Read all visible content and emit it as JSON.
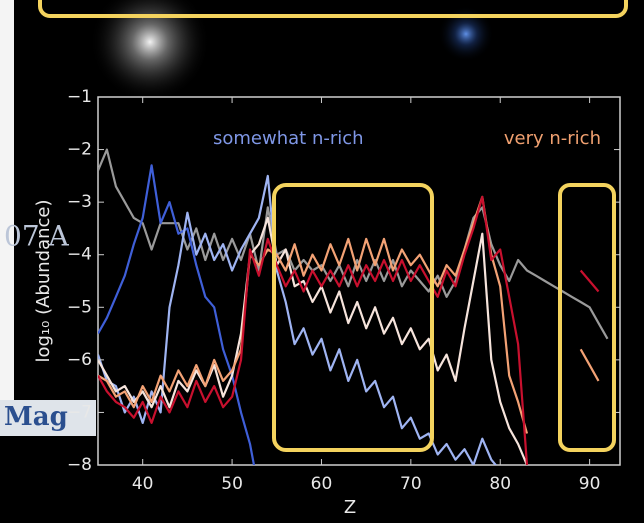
{
  "chart_data": {
    "type": "line",
    "xlabel": "Z",
    "ylabel": "log₁₀ (Abundance)",
    "annotations": [
      "somewhat n-rich",
      "very n-rich"
    ],
    "background_text": [
      "07 A",
      "Mag"
    ],
    "xlim": [
      35,
      93.4
    ],
    "ylim": [
      -8,
      -1
    ],
    "xticks": [
      40,
      50,
      60,
      70,
      80,
      90
    ],
    "yticks": [
      {
        "value": -8,
        "label": "−8"
      },
      {
        "value": -7,
        "label": "−7"
      },
      {
        "value": -6,
        "label": "−6"
      },
      {
        "value": -5,
        "label": "−5"
      },
      {
        "value": -4,
        "label": "−4"
      },
      {
        "value": -3,
        "label": "−3"
      },
      {
        "value": -2,
        "label": "−2"
      },
      {
        "value": -1,
        "label": "−1"
      }
    ],
    "x": [
      35,
      36,
      37,
      38,
      39,
      40,
      41,
      42,
      43,
      44,
      45,
      46,
      47,
      48,
      49,
      50,
      51,
      52,
      53,
      54,
      55,
      56,
      57,
      58,
      59,
      60,
      61,
      62,
      63,
      64,
      65,
      66,
      67,
      68,
      69,
      70,
      71,
      72,
      73,
      74,
      75,
      76,
      77,
      78,
      79,
      80,
      81,
      82,
      83,
      84,
      85,
      86,
      87,
      88,
      89,
      90,
      91,
      92
    ],
    "series": [
      {
        "color": "#9a9a9a",
        "values": [
          -2.4,
          -2.0,
          -2.7,
          -3.0,
          -3.3,
          -3.4,
          -3.9,
          -3.4,
          -3.4,
          -3.4,
          -3.9,
          -3.5,
          -4.1,
          -3.6,
          -4.1,
          -3.7,
          -4.1,
          -3.6,
          -4.3,
          -3.1,
          -4.0,
          -3.9,
          -4.3,
          -4.1,
          -4.3,
          -4.2,
          -4.5,
          -4.2,
          -4.6,
          -4.1,
          -4.5,
          -4.1,
          -4.5,
          -4.1,
          -4.6,
          -4.3,
          -4.5,
          -4.7,
          -4.4,
          -4.8,
          -4.5,
          -3.9,
          -3.3,
          -3.1,
          -3.8,
          -4.2,
          -4.5,
          -4.1,
          -4.3,
          -4.4,
          -4.5,
          -4.6,
          -4.7,
          -4.8,
          -4.9,
          -5.0,
          -5.3,
          -5.6
        ]
      },
      {
        "color": "#3f5fd8",
        "values": [
          -5.5,
          -5.2,
          -4.8,
          -4.4,
          -3.8,
          -3.3,
          -2.3,
          -3.4,
          -3.0,
          -3.6,
          -3.5,
          -4.2,
          -4.8,
          -5.0,
          -5.8,
          -6.3,
          -7.0,
          -7.6,
          -8.5,
          null,
          null,
          null,
          null,
          null,
          null,
          null,
          null,
          null,
          null,
          null,
          null,
          null,
          null,
          null,
          null,
          null,
          null,
          null,
          null,
          null,
          null,
          null,
          null,
          null,
          null,
          null,
          null,
          null,
          null,
          null,
          null,
          null,
          null,
          null,
          null,
          null,
          null,
          null
        ]
      },
      {
        "color": "#9fb4f2",
        "values": [
          -5.9,
          -6.4,
          -6.5,
          -7.0,
          -6.7,
          -7.2,
          -6.6,
          -7.0,
          -5.0,
          -4.2,
          -3.2,
          -4.0,
          -3.6,
          -4.1,
          -3.8,
          -4.3,
          -3.9,
          -3.6,
          -3.3,
          -2.5,
          -4.3,
          -4.9,
          -5.7,
          -5.4,
          -5.9,
          -5.6,
          -6.2,
          -5.8,
          -6.4,
          -6.0,
          -6.6,
          -6.4,
          -6.9,
          -6.7,
          -7.3,
          -7.1,
          -7.5,
          -7.4,
          -7.8,
          -7.6,
          -7.9,
          -7.7,
          -8.0,
          -7.5,
          -7.9,
          -8.1,
          null,
          null,
          null,
          null,
          null,
          null,
          null,
          null,
          null,
          null,
          null,
          null
        ]
      },
      {
        "color": "#f6e4dc",
        "values": [
          -6.0,
          -6.3,
          -6.6,
          -6.5,
          -6.8,
          -6.6,
          -6.9,
          -6.5,
          -6.9,
          -6.4,
          -6.6,
          -6.2,
          -6.5,
          -6.1,
          -6.7,
          -6.3,
          -5.5,
          -4.0,
          -3.8,
          -3.3,
          -4.2,
          -3.9,
          -4.6,
          -4.5,
          -4.9,
          -4.6,
          -5.1,
          -4.7,
          -5.3,
          -4.9,
          -5.4,
          -5.0,
          -5.5,
          -5.2,
          -5.7,
          -5.4,
          -5.8,
          -5.6,
          -6.2,
          -5.9,
          -6.4,
          -5.4,
          -4.5,
          -3.6,
          -6.0,
          -6.8,
          -7.3,
          -7.6,
          -8.0,
          null,
          null,
          null,
          null,
          null,
          null,
          null,
          null,
          null
        ]
      },
      {
        "color": "#f3a275",
        "values": [
          -6.3,
          -6.4,
          -6.7,
          -6.6,
          -6.9,
          -6.5,
          -6.8,
          -6.3,
          -6.6,
          -6.2,
          -6.5,
          -6.1,
          -6.5,
          -6.0,
          -6.4,
          -6.2,
          -5.8,
          -4.0,
          -4.2,
          -3.9,
          -4.0,
          -4.3,
          -3.8,
          -4.4,
          -4.0,
          -4.3,
          -3.8,
          -4.2,
          -3.7,
          -4.3,
          -3.7,
          -4.2,
          -3.7,
          -4.3,
          -3.9,
          -4.2,
          -4.0,
          -4.3,
          -4.6,
          -4.2,
          -4.4,
          -3.9,
          -3.4,
          -2.9,
          -4.0,
          -4.6,
          -6.3,
          -6.8,
          -7.4,
          null,
          null,
          null,
          null,
          null,
          -5.8,
          -6.1,
          -6.4,
          null
        ]
      },
      {
        "color": "#c8102e",
        "values": [
          -6.3,
          -6.6,
          -6.8,
          -6.9,
          -7.1,
          -6.8,
          -7.2,
          -6.7,
          -7.0,
          -6.6,
          -6.9,
          -6.4,
          -6.8,
          -6.5,
          -6.9,
          -6.7,
          -6.0,
          -3.9,
          -4.4,
          -3.7,
          -4.2,
          -4.6,
          -4.3,
          -4.7,
          -4.3,
          -4.6,
          -4.3,
          -4.6,
          -4.2,
          -4.6,
          -4.2,
          -4.5,
          -4.1,
          -4.5,
          -4.1,
          -4.5,
          -4.2,
          -4.5,
          -4.8,
          -4.3,
          -4.6,
          -4.0,
          -3.5,
          -2.9,
          -4.1,
          -3.9,
          -4.8,
          -5.7,
          -8.0,
          null,
          null,
          null,
          null,
          null,
          -4.3,
          -4.5,
          -4.7,
          null
        ]
      }
    ]
  }
}
